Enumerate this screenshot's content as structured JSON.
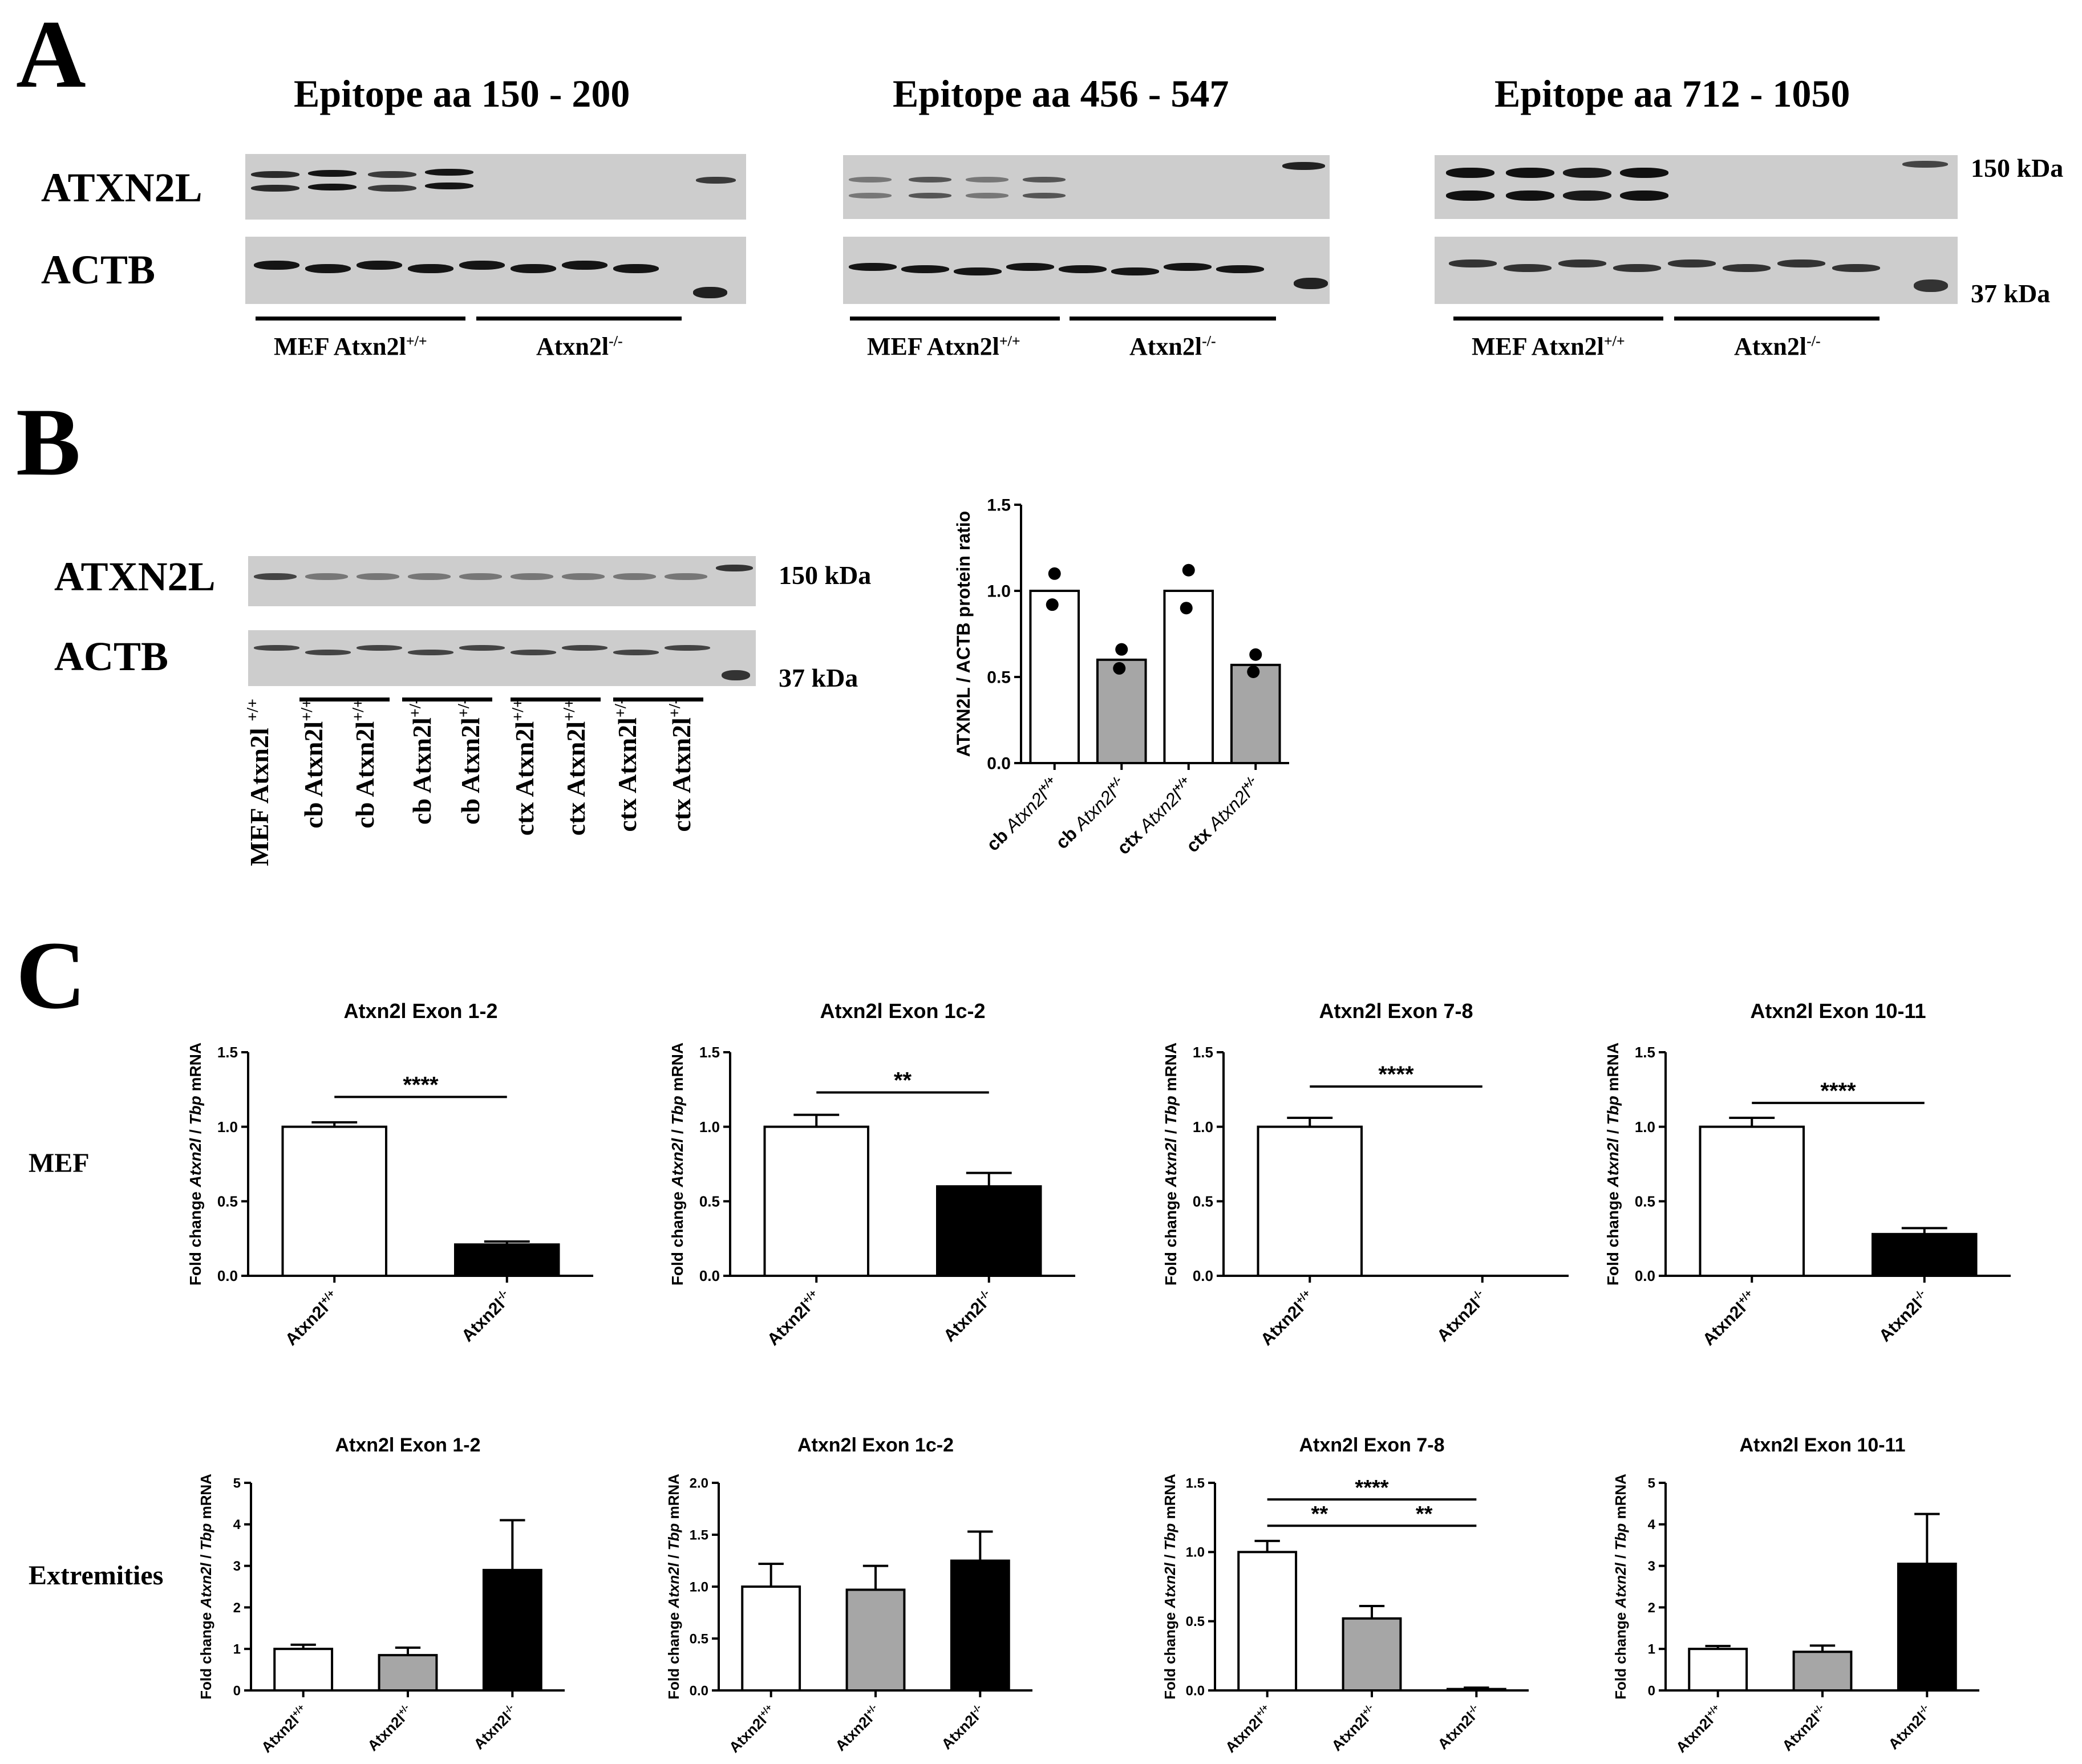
{
  "panel_a": {
    "letter": "A",
    "blots": [
      {
        "title": "Epitope aa 150 - 200",
        "group_left": "MEF Atxn2l",
        "group_left_sup": "+/+",
        "group_right": "Atxn2l",
        "group_right_sup": "-/-"
      },
      {
        "title": "Epitope aa 456 - 547",
        "group_left": "MEF Atxn2l",
        "group_left_sup": "+/+",
        "group_right": "Atxn2l",
        "group_right_sup": "-/-"
      },
      {
        "title": "Epitope aa 712 - 1050",
        "group_left": "MEF Atxn2l",
        "group_left_sup": "+/+",
        "group_right": "Atxn2l",
        "group_right_sup": "-/-"
      }
    ],
    "row_top": "ATXN2L",
    "row_bottom": "ACTB",
    "size_top": "150 kDa",
    "size_bottom": "37 kDa"
  },
  "panel_b": {
    "letter": "B",
    "row_top": "ATXN2L",
    "row_bottom": "ACTB",
    "size_top": "150 kDa",
    "size_bottom": "37 kDa",
    "lanes": [
      {
        "text": "MEF Atxn2l ",
        "sup": "+/+"
      },
      {
        "text": "cb Atxn2l",
        "sup": "+/+"
      },
      {
        "text": "cb Atxn2l",
        "sup": "+/+"
      },
      {
        "text": "cb Atxn2l",
        "sup": "+/-"
      },
      {
        "text": "cb Atxn2l",
        "sup": "+/-"
      },
      {
        "text": "ctx Atxn2l",
        "sup": "+/+"
      },
      {
        "text": "ctx Atxn2l",
        "sup": "+/+"
      },
      {
        "text": "ctx Atxn2l",
        "sup": "+/-"
      },
      {
        "text": "ctx Atxn2l",
        "sup": "+/-"
      }
    ]
  },
  "panel_c": {
    "letter": "C",
    "row_labels": [
      "MEF",
      "Extremities"
    ],
    "ylabel_prefix": "Fold change ",
    "ylabel_gene": "Atxn2l",
    "ylabel_mid": " / ",
    "ylabel_ref": "Tbp",
    "ylabel_suffix": " mRNA"
  },
  "chart_data": [
    {
      "type": "bar",
      "title": "",
      "ylabel": "ATXN2L / ACTB protein ratio",
      "categories": [
        {
          "prefix": "cb ",
          "gene": "Atxn2l",
          "sup": "+/+"
        },
        {
          "prefix": "cb ",
          "gene": "Atxn2l",
          "sup": "+/-"
        },
        {
          "prefix": "ctx ",
          "gene": "Atxn2l",
          "sup": "+/+"
        },
        {
          "prefix": "ctx ",
          "gene": "Atxn2l",
          "sup": "+/-"
        }
      ],
      "values": [
        1.0,
        0.6,
        1.0,
        0.57
      ],
      "points": [
        [
          1.1,
          0.92
        ],
        [
          0.66,
          0.55
        ],
        [
          1.12,
          0.9
        ],
        [
          0.63,
          0.53
        ]
      ],
      "fills": [
        "#ffffff",
        "#a6a6a6",
        "#ffffff",
        "#a6a6a6"
      ],
      "ylim": [
        0,
        1.5
      ],
      "yticks": [
        "0.0",
        "0.5",
        "1.0",
        "1.5"
      ]
    },
    {
      "type": "bar",
      "title": "Atxn2l Exon 1-2",
      "categories": [
        {
          "gene": "Atxn2l",
          "sup": "+/+"
        },
        {
          "gene": "Atxn2l",
          "sup": "-/-"
        }
      ],
      "values": [
        1.0,
        0.21
      ],
      "errors": [
        0.03,
        0.02
      ],
      "fills": [
        "#ffffff",
        "#000000"
      ],
      "ylim": [
        0,
        1.5
      ],
      "yticks": [
        "0.0",
        "0.5",
        "1.0",
        "1.5"
      ],
      "significance": [
        {
          "from": 0,
          "to": 1,
          "y": 1.2,
          "label": "****"
        }
      ]
    },
    {
      "type": "bar",
      "title": "Atxn2l Exon 1c-2",
      "categories": [
        {
          "gene": "Atxn2l",
          "sup": "+/+"
        },
        {
          "gene": "Atxn2l",
          "sup": "-/-"
        }
      ],
      "values": [
        1.0,
        0.6
      ],
      "errors": [
        0.08,
        0.09
      ],
      "fills": [
        "#ffffff",
        "#000000"
      ],
      "ylim": [
        0,
        1.5
      ],
      "yticks": [
        "0.0",
        "0.5",
        "1.0",
        "1.5"
      ],
      "significance": [
        {
          "from": 0,
          "to": 1,
          "y": 1.23,
          "label": "**"
        }
      ]
    },
    {
      "type": "bar",
      "title": "Atxn2l Exon 7-8",
      "categories": [
        {
          "gene": "Atxn2l",
          "sup": "+/+"
        },
        {
          "gene": "Atxn2l",
          "sup": "-/-"
        }
      ],
      "values": [
        1.0,
        0.0
      ],
      "errors": [
        0.06,
        0.0
      ],
      "fills": [
        "#ffffff",
        "#000000"
      ],
      "ylim": [
        0,
        1.5
      ],
      "yticks": [
        "0.0",
        "0.5",
        "1.0",
        "1.5"
      ],
      "significance": [
        {
          "from": 0,
          "to": 1,
          "y": 1.27,
          "label": "****"
        }
      ]
    },
    {
      "type": "bar",
      "title": "Atxn2l Exon 10-11",
      "categories": [
        {
          "gene": "Atxn2l",
          "sup": "+/+"
        },
        {
          "gene": "Atxn2l",
          "sup": "-/-"
        }
      ],
      "values": [
        1.0,
        0.28
      ],
      "errors": [
        0.06,
        0.04
      ],
      "fills": [
        "#ffffff",
        "#000000"
      ],
      "ylim": [
        0,
        1.5
      ],
      "yticks": [
        "0.0",
        "0.5",
        "1.0",
        "1.5"
      ],
      "significance": [
        {
          "from": 0,
          "to": 1,
          "y": 1.16,
          "label": "****"
        }
      ]
    },
    {
      "type": "bar",
      "title": "Atxn2l Exon 1-2",
      "categories": [
        {
          "gene": "Atxn2l",
          "sup": "+/+"
        },
        {
          "gene": "Atxn2l",
          "sup": "+/-"
        },
        {
          "gene": "Atxn2l",
          "sup": "-/-"
        }
      ],
      "values": [
        1.0,
        0.85,
        2.9
      ],
      "errors": [
        0.1,
        0.18,
        1.2
      ],
      "fills": [
        "#ffffff",
        "#a6a6a6",
        "#000000"
      ],
      "ylim": [
        0,
        5
      ],
      "yticks": [
        "0",
        "1",
        "2",
        "3",
        "4",
        "5"
      ],
      "significance": []
    },
    {
      "type": "bar",
      "title": "Atxn2l Exon 1c-2",
      "categories": [
        {
          "gene": "Atxn2l",
          "sup": "+/+"
        },
        {
          "gene": "Atxn2l",
          "sup": "+/-"
        },
        {
          "gene": "Atxn2l",
          "sup": "-/-"
        }
      ],
      "values": [
        1.0,
        0.97,
        1.25
      ],
      "errors": [
        0.22,
        0.23,
        0.28
      ],
      "fills": [
        "#ffffff",
        "#a6a6a6",
        "#000000"
      ],
      "ylim": [
        0,
        2.0
      ],
      "yticks": [
        "0.0",
        "0.5",
        "1.0",
        "1.5",
        "2.0"
      ],
      "significance": []
    },
    {
      "type": "bar",
      "title": "Atxn2l Exon 7-8",
      "categories": [
        {
          "gene": "Atxn2l",
          "sup": "+/+"
        },
        {
          "gene": "Atxn2l",
          "sup": "+/-"
        },
        {
          "gene": "Atxn2l",
          "sup": "-/-"
        }
      ],
      "values": [
        1.0,
        0.52,
        0.01
      ],
      "errors": [
        0.08,
        0.09,
        0.01
      ],
      "fills": [
        "#ffffff",
        "#a6a6a6",
        "#000000"
      ],
      "ylim": [
        0,
        1.5
      ],
      "yticks": [
        "0.0",
        "0.5",
        "1.0",
        "1.5"
      ],
      "significance": [
        {
          "from": 0,
          "to": 2,
          "y": 1.38,
          "label": "****"
        },
        {
          "from": 0,
          "to": 1,
          "y": 1.19,
          "label": "**"
        },
        {
          "from": 1,
          "to": 2,
          "y": 1.19,
          "label": "**"
        }
      ]
    },
    {
      "type": "bar",
      "title": "Atxn2l Exon 10-11",
      "categories": [
        {
          "gene": "Atxn2l",
          "sup": "+/+"
        },
        {
          "gene": "Atxn2l",
          "sup": "+/-"
        },
        {
          "gene": "Atxn2l",
          "sup": "-/-"
        }
      ],
      "values": [
        1.0,
        0.93,
        3.05
      ],
      "errors": [
        0.07,
        0.15,
        1.2
      ],
      "fills": [
        "#ffffff",
        "#a6a6a6",
        "#000000"
      ],
      "ylim": [
        0,
        5
      ],
      "yticks": [
        "0",
        "1",
        "2",
        "3",
        "4",
        "5"
      ],
      "significance": []
    }
  ]
}
